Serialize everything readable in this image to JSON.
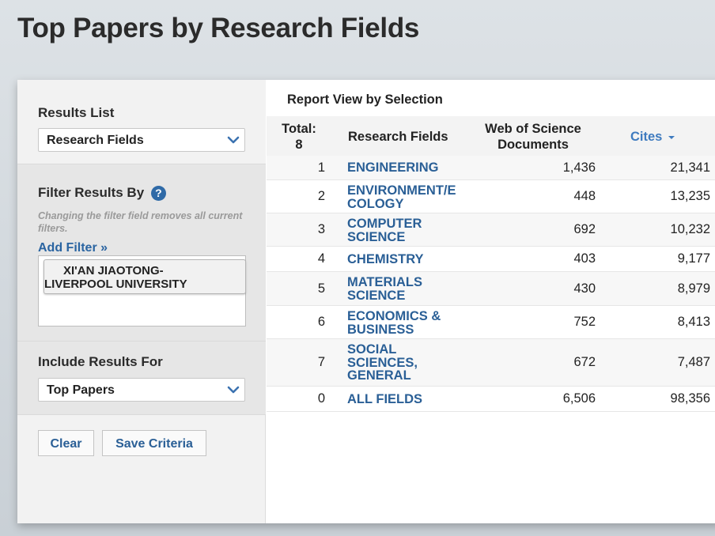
{
  "page": {
    "title": "Top Papers by Research Fields"
  },
  "sidebar": {
    "results_list_label": "Results List",
    "results_list_value": "Research Fields",
    "filter_label": "Filter Results By",
    "help_glyph": "?",
    "filter_hint": "Changing the filter field removes all current filters.",
    "add_filter": "Add Filter »",
    "filter_chip_line1": "XI'AN JIAOTONG-",
    "filter_chip_line2": "LIVERPOOL UNIVERSITY",
    "include_label": "Include Results For",
    "include_value": "Top Papers",
    "clear_button": "Clear",
    "save_button": "Save Criteria"
  },
  "report": {
    "title": "Report View by Selection",
    "headers": {
      "total_line1": "Total:",
      "total_line2": "8",
      "field": "Research Fields",
      "docs_line1": "Web of Science",
      "docs_line2": "Documents",
      "cites": "Cites"
    },
    "rows": [
      {
        "rank": "1",
        "field": [
          "ENGINEERING"
        ],
        "docs": "1,436",
        "cites": "21,341"
      },
      {
        "rank": "2",
        "field": [
          "ENVIRONMENT/E",
          "COLOGY"
        ],
        "docs": "448",
        "cites": "13,235"
      },
      {
        "rank": "3",
        "field": [
          "COMPUTER",
          "SCIENCE"
        ],
        "docs": "692",
        "cites": "10,232"
      },
      {
        "rank": "4",
        "field": [
          "CHEMISTRY"
        ],
        "docs": "403",
        "cites": "9,177"
      },
      {
        "rank": "5",
        "field": [
          "MATERIALS",
          "SCIENCE"
        ],
        "docs": "430",
        "cites": "8,979"
      },
      {
        "rank": "6",
        "field": [
          "ECONOMICS &",
          "BUSINESS"
        ],
        "docs": "752",
        "cites": "8,413"
      },
      {
        "rank": "7",
        "field": [
          "SOCIAL",
          "SCIENCES,",
          "GENERAL"
        ],
        "docs": "672",
        "cites": "7,487"
      },
      {
        "rank": "0",
        "field": [
          "ALL FIELDS"
        ],
        "docs": "6,506",
        "cites": "98,356"
      }
    ]
  },
  "colors": {
    "link": "#2a5f96",
    "sort_link": "#3f7bbf",
    "help": "#2f6aa7"
  },
  "icons": {
    "dropdown": "chevron-down-icon",
    "sort": "sort-desc-icon",
    "help": "help-icon"
  }
}
